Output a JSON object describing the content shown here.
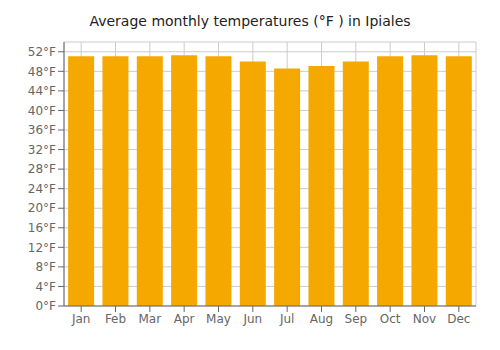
{
  "chart_data": {
    "type": "bar",
    "title": "Average monthly temperatures (°F ) in Ipiales",
    "categories": [
      "Jan",
      "Feb",
      "Mar",
      "Apr",
      "May",
      "Jun",
      "Jul",
      "Aug",
      "Sep",
      "Oct",
      "Nov",
      "Dec"
    ],
    "values": [
      51.1,
      51.1,
      51.1,
      51.3,
      51.1,
      50.0,
      48.6,
      49.1,
      50.0,
      51.1,
      51.3,
      51.1
    ],
    "color": "#F5A800",
    "ylim": [
      0,
      54
    ],
    "yticks": [
      {
        "value": 0,
        "label": "0°F"
      },
      {
        "value": 4,
        "label": "4°F"
      },
      {
        "value": 8,
        "label": "8°F"
      },
      {
        "value": 12,
        "label": "12°F"
      },
      {
        "value": 16,
        "label": "16°F"
      },
      {
        "value": 20,
        "label": "20°F"
      },
      {
        "value": 24,
        "label": "24°F"
      },
      {
        "value": 28,
        "label": "28°F"
      },
      {
        "value": 32,
        "label": "32°F"
      },
      {
        "value": 36,
        "label": "36°F"
      },
      {
        "value": 40,
        "label": "40°F"
      },
      {
        "value": 44,
        "label": "44°F"
      },
      {
        "value": 48,
        "label": "48°F"
      },
      {
        "value": 52,
        "label": "52°F"
      }
    ],
    "grid": true
  }
}
